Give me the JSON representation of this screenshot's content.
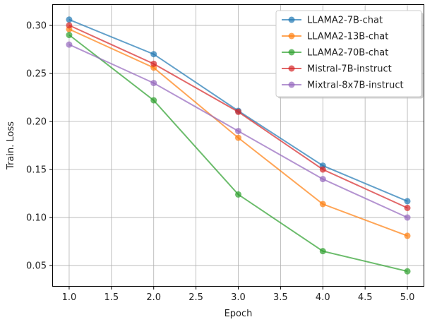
{
  "chart_data": {
    "type": "line",
    "title": "",
    "xlabel": "Epoch",
    "ylabel": "Train. Loss",
    "x": [
      1.0,
      2.0,
      3.0,
      4.0,
      5.0
    ],
    "xlim": [
      0.8,
      5.2
    ],
    "ylim": [
      0.028,
      0.322
    ],
    "xticks": [
      1.0,
      1.5,
      2.0,
      2.5,
      3.0,
      3.5,
      4.0,
      4.5,
      5.0
    ],
    "xtick_labels": [
      "1.0",
      "1.5",
      "2.0",
      "2.5",
      "3.0",
      "3.5",
      "4.0",
      "4.5",
      "5.0"
    ],
    "yticks": [
      0.05,
      0.1,
      0.15,
      0.2,
      0.25,
      0.3
    ],
    "ytick_labels": [
      "0.05",
      "0.10",
      "0.15",
      "0.20",
      "0.25",
      "0.30"
    ],
    "grid": true,
    "legend_position": "top-right",
    "series": [
      {
        "name": "LLAMA2-7B-chat",
        "color": "#1f77b4",
        "values": [
          0.306,
          0.27,
          0.211,
          0.154,
          0.117
        ]
      },
      {
        "name": "LLAMA2-13B-chat",
        "color": "#ff7f0e",
        "values": [
          0.296,
          0.256,
          0.183,
          0.114,
          0.081
        ]
      },
      {
        "name": "LLAMA2-70B-chat",
        "color": "#2ca02c",
        "values": [
          0.29,
          0.222,
          0.124,
          0.065,
          0.044
        ]
      },
      {
        "name": "Mistral-7B-instruct",
        "color": "#d62728",
        "values": [
          0.3,
          0.26,
          0.21,
          0.15,
          0.11
        ]
      },
      {
        "name": "Mixtral-8x7B-instruct",
        "color": "#9467bd",
        "values": [
          0.28,
          0.24,
          0.19,
          0.14,
          0.1
        ]
      }
    ]
  }
}
